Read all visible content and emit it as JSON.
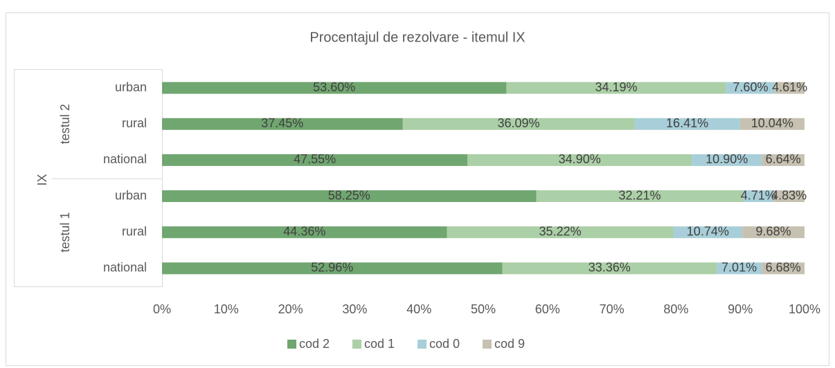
{
  "chart_data": {
    "type": "stacked-bar-horizontal",
    "title": "Procentajul de rezolvare - itemul IX",
    "axis_group_label": "IX",
    "groups": [
      {
        "name": "testul 2",
        "categories": [
          "urban",
          "rural",
          "national"
        ]
      },
      {
        "name": "testul 1",
        "categories": [
          "urban",
          "rural",
          "national"
        ]
      }
    ],
    "series": [
      {
        "name": "cod 2",
        "color": "#70a670",
        "values": [
          53.6,
          37.45,
          47.55,
          58.25,
          44.36,
          52.96
        ],
        "value_labels": [
          "53.60%",
          "37.45%",
          "47.55%",
          "58.25%",
          "44.36%",
          "52.96%"
        ]
      },
      {
        "name": "cod 1",
        "color": "#abcfa6",
        "values": [
          34.19,
          36.09,
          34.9,
          32.21,
          35.22,
          33.36
        ],
        "value_labels": [
          "34.19%",
          "36.09%",
          "34.90%",
          "32.21%",
          "35.22%",
          "33.36%"
        ]
      },
      {
        "name": "cod 0",
        "color": "#a8cfd9",
        "values": [
          7.6,
          16.41,
          10.9,
          4.71,
          10.74,
          7.01
        ],
        "value_labels": [
          "7.60%",
          "16.41%",
          "10.90%",
          "4.71%",
          "10.74%",
          "7.01%"
        ]
      },
      {
        "name": "cod 9",
        "color": "#c6c1b1",
        "values": [
          4.61,
          10.04,
          6.64,
          4.83,
          9.68,
          6.68
        ],
        "value_labels": [
          "4.61%",
          "10.04%",
          "6.64%",
          "4.83%",
          "9.68%",
          "6.68%"
        ]
      }
    ],
    "xlim": [
      0,
      100
    ],
    "xticks": [
      {
        "value": 0,
        "label": "0%"
      },
      {
        "value": 10,
        "label": "10%"
      },
      {
        "value": 20,
        "label": "20%"
      },
      {
        "value": 30,
        "label": "30%"
      },
      {
        "value": 40,
        "label": "40%"
      },
      {
        "value": 50,
        "label": "50%"
      },
      {
        "value": 60,
        "label": "60%"
      },
      {
        "value": 70,
        "label": "70%"
      },
      {
        "value": 80,
        "label": "80%"
      },
      {
        "value": 90,
        "label": "90%"
      },
      {
        "value": 100,
        "label": "100%"
      }
    ],
    "legend": "bottom"
  }
}
